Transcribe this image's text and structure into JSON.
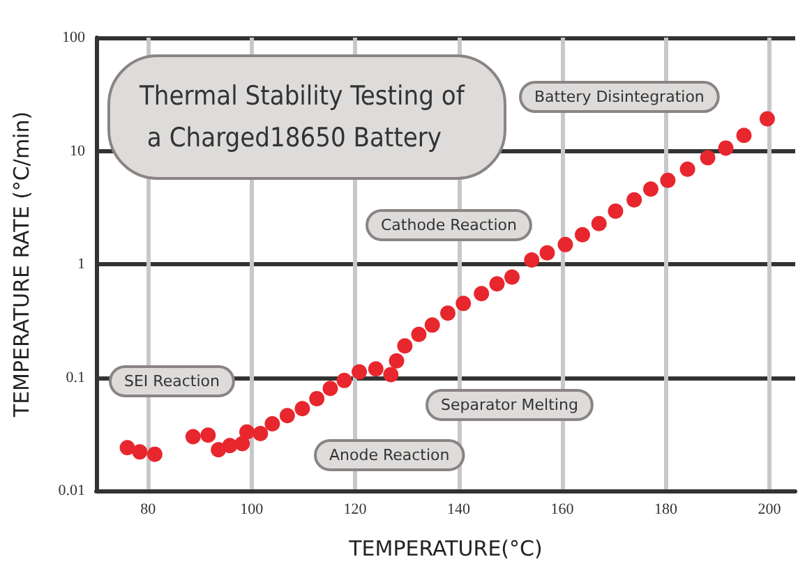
{
  "chart_data": {
    "type": "scatter",
    "title": "Thermal Stability Testing of a Charged18650 Battery",
    "xlabel": "TEMPERATURE(°C)",
    "ylabel": "TEMPERATURE RATE (°C/min)",
    "x": [
      76,
      78.4,
      81.3,
      88.7,
      91.6,
      93.6,
      95.8,
      98.2,
      99.1,
      101.7,
      104,
      106.9,
      109.8,
      112.6,
      115.2,
      117.9,
      120.8,
      124,
      126.9,
      128,
      129.6,
      132.3,
      134.9,
      137.9,
      140.9,
      144.4,
      147.4,
      150.3,
      154.1,
      157.1,
      160.6,
      163.9,
      167.1,
      170.3,
      173.9,
      177.1,
      180.4,
      184.2,
      188.1,
      191.6,
      195.1,
      199.6
    ],
    "series": [
      {
        "color": "#e8262e",
        "values": [
          0.024,
          0.022,
          0.021,
          0.03,
          0.031,
          0.023,
          0.025,
          0.026,
          0.033,
          0.032,
          0.039,
          0.046,
          0.053,
          0.065,
          0.08,
          0.094,
          0.112,
          0.119,
          0.106,
          0.14,
          0.19,
          0.24,
          0.29,
          0.37,
          0.45,
          0.55,
          0.67,
          0.77,
          1.09,
          1.26,
          1.49,
          1.82,
          2.28,
          2.94,
          3.7,
          4.6,
          5.5,
          6.9,
          8.7,
          10.6,
          13.7,
          19.2
        ]
      }
    ],
    "xlim": [
      70,
      205
    ],
    "xticks": [
      80,
      100,
      120,
      140,
      160,
      180,
      200
    ],
    "ylim": [
      0.01,
      100
    ],
    "yticks": [
      0.01,
      0.1,
      1,
      10,
      100
    ],
    "log": "y",
    "grid": true,
    "marker": "circle",
    "annotations": [
      "SEI Reaction",
      "Anode Reaction",
      "Separator Melting",
      "Cathode Reaction",
      "Battery Disintegration"
    ]
  }
}
